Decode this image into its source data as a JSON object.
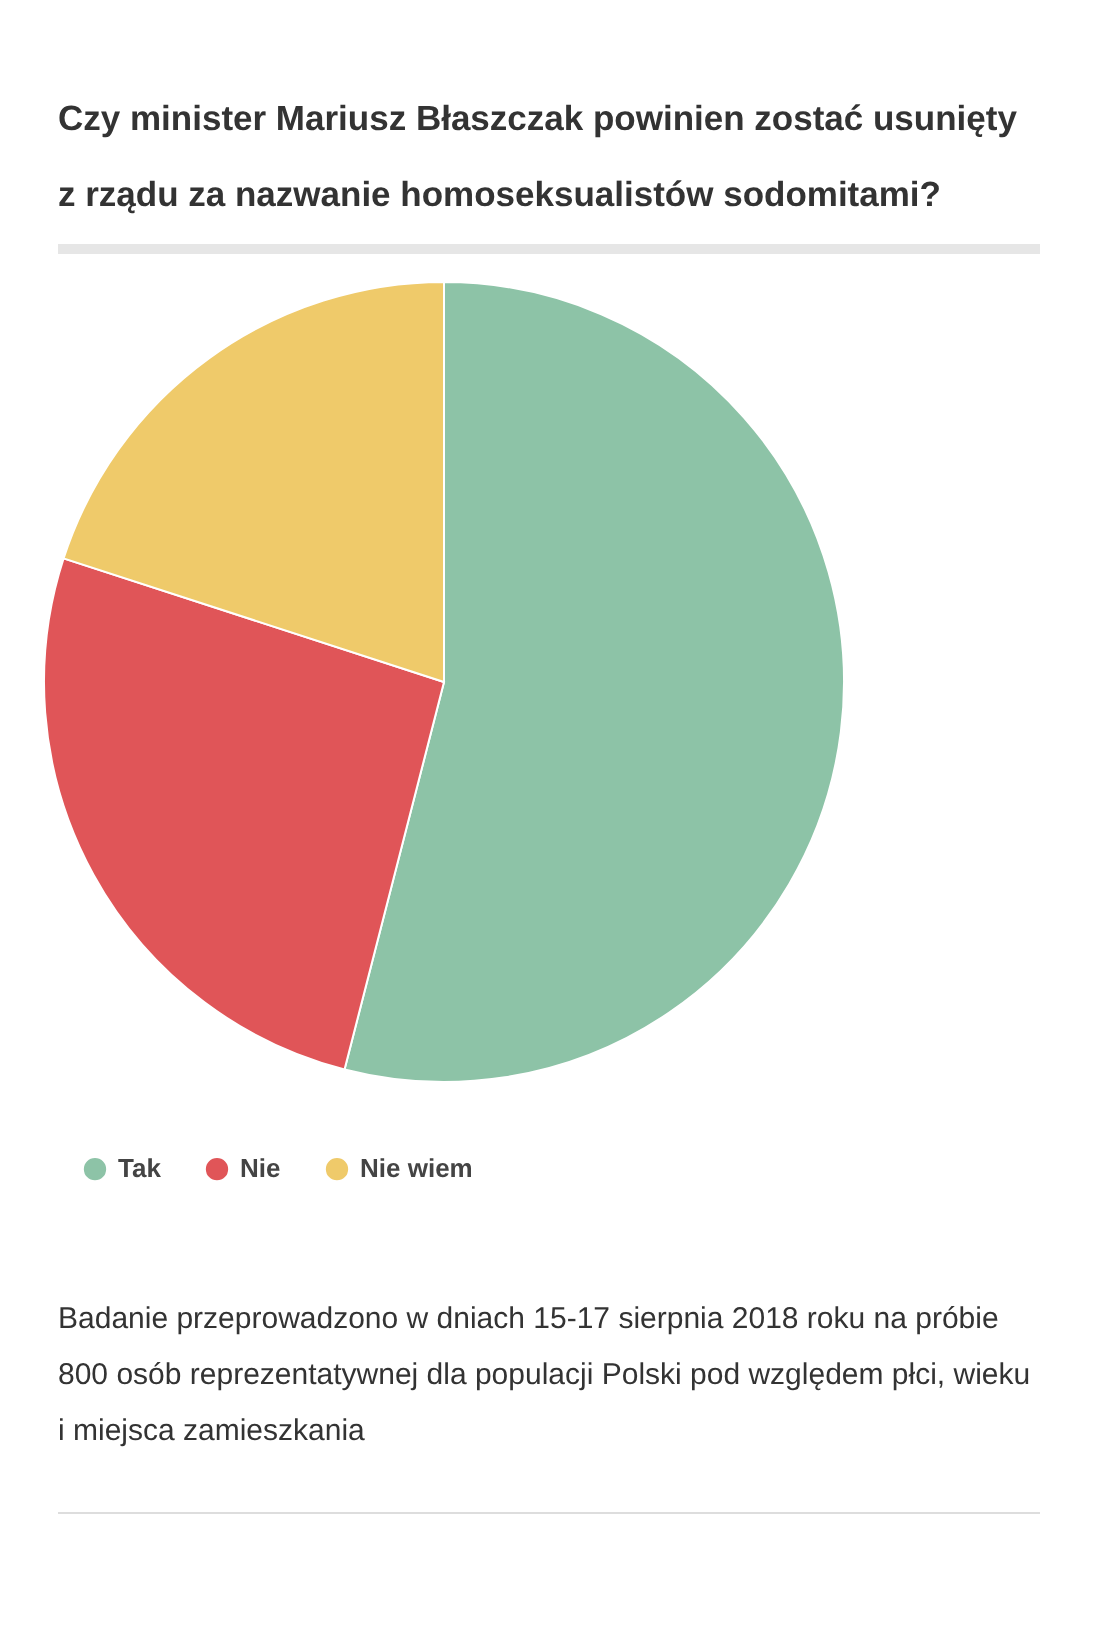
{
  "chart_data": {
    "type": "pie",
    "title": "Czy minister Mariusz Błaszczak powinien zostać usunięty z rządu za nazwanie homoseksualistów sodomitami?",
    "categories": [
      "Tak",
      "Nie",
      "Nie wiem"
    ],
    "values": [
      54,
      26,
      20
    ],
    "colors": [
      "#8dc3a7",
      "#e05558",
      "#efca6a"
    ],
    "legend": "bottom",
    "annotations": [
      "Badanie przeprowadzono w dniach 15-17 sierpnia 2018 roku na próbie 800 osób reprezentatywnej dla populacji Polski pod względem płci, wieku i miejsca zamieszkania"
    ]
  }
}
